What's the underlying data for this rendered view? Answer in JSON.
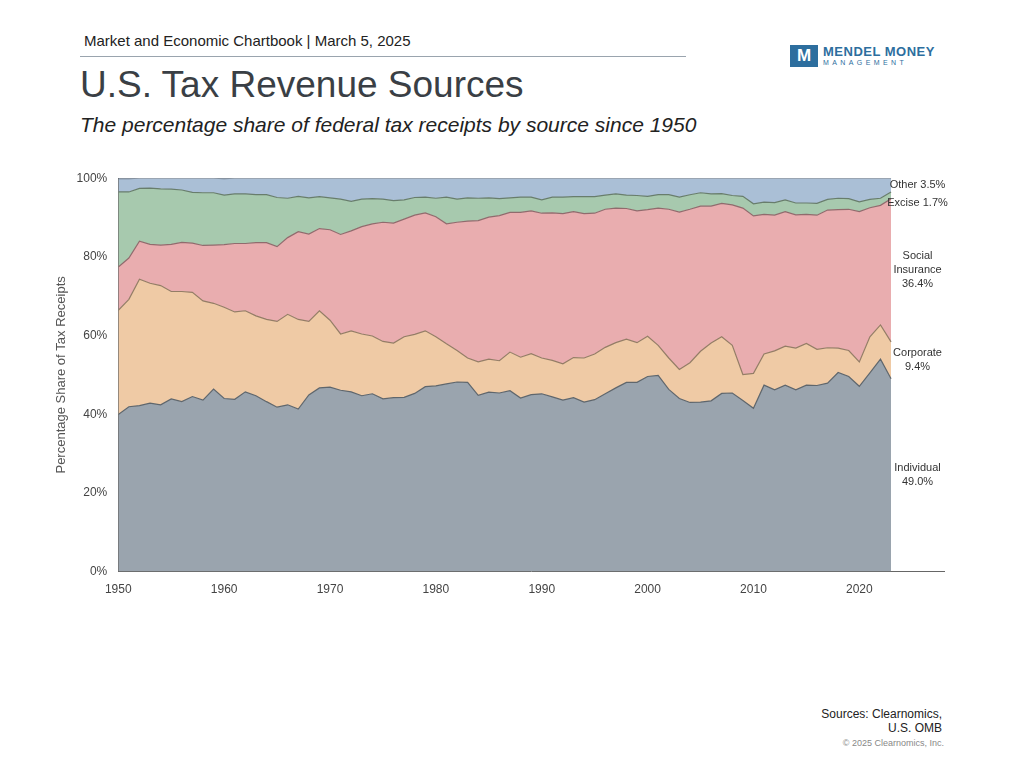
{
  "header": "Market and Economic Chartbook | March 5, 2025",
  "logo": [
    "MENDEL MONEY",
    "MANAGEMENT"
  ],
  "source": [
    "Sources: Clearnomics,",
    "U.S. OMB"
  ],
  "copyright": "© 2025 Clearnomics, Inc.",
  "chart_data": {
    "type": "area",
    "title": "U.S. Tax Revenue Sources",
    "subtitle": "The percentage share of federal tax receipts by source since 1950",
    "y_label": "Percentage Share of Tax Receipts",
    "stacked": true,
    "grid": false,
    "x": [
      1950,
      1951,
      1952,
      1953,
      1954,
      1955,
      1956,
      1957,
      1958,
      1959,
      1960,
      1961,
      1962,
      1963,
      1964,
      1965,
      1966,
      1967,
      1968,
      1969,
      1970,
      1971,
      1972,
      1973,
      1974,
      1975,
      1976,
      1977,
      1978,
      1979,
      1980,
      1981,
      1982,
      1983,
      1984,
      1985,
      1986,
      1987,
      1988,
      1989,
      1990,
      1991,
      1992,
      1993,
      1994,
      1995,
      1996,
      1997,
      1998,
      1999,
      2000,
      2001,
      2002,
      2003,
      2004,
      2005,
      2006,
      2007,
      2008,
      2009,
      2010,
      2011,
      2012,
      2013,
      2014,
      2015,
      2016,
      2017,
      2018,
      2019,
      2020,
      2021,
      2022,
      2023
    ],
    "xlim": [
      1950,
      2028
    ],
    "xticks": [
      1950,
      1960,
      1970,
      1980,
      1990,
      2000,
      2010,
      2020
    ],
    "ylim": [
      0,
      100
    ],
    "yticks": [
      {
        "value": 0,
        "label": "0%"
      },
      {
        "value": 20,
        "label": "20%"
      },
      {
        "value": 40,
        "label": "40%"
      },
      {
        "value": 60,
        "label": "60%"
      },
      {
        "value": 80,
        "label": "80%"
      },
      {
        "value": 100,
        "label": "100%"
      }
    ],
    "series": [
      {
        "name": "Individual",
        "color": "#9aa4ae",
        "values": [
          39.9,
          41.9,
          42.2,
          42.8,
          42.4,
          43.9,
          43.2,
          44.5,
          43.6,
          46.4,
          44.0,
          43.8,
          45.7,
          44.7,
          43.2,
          41.8,
          42.4,
          41.3,
          44.9,
          46.7,
          46.9,
          46.1,
          45.7,
          44.7,
          45.2,
          43.9,
          44.2,
          44.3,
          45.3,
          47.0,
          47.2,
          47.7,
          48.2,
          48.1,
          44.8,
          45.6,
          45.4,
          46.0,
          44.1,
          45.0,
          45.2,
          44.4,
          43.6,
          44.2,
          43.1,
          43.7,
          45.2,
          46.7,
          48.1,
          48.1,
          49.6,
          49.9,
          46.3,
          44.0,
          43.0,
          43.1,
          43.4,
          45.3,
          45.4,
          43.5,
          41.5,
          47.4,
          46.2,
          47.4,
          46.2,
          47.4,
          47.3,
          47.9,
          50.6,
          49.6,
          47.1,
          50.5,
          54.0,
          49.0
        ]
      },
      {
        "name": "Corporate",
        "color": "#efcaa5",
        "values": [
          26.5,
          27.3,
          32.1,
          30.5,
          30.3,
          27.3,
          28.0,
          26.5,
          25.2,
          21.8,
          23.2,
          22.2,
          20.6,
          20.3,
          20.9,
          21.8,
          23.0,
          22.8,
          18.7,
          19.6,
          17.0,
          14.3,
          15.5,
          15.7,
          14.7,
          14.6,
          13.9,
          15.4,
          15.0,
          14.2,
          12.5,
          10.2,
          8.0,
          6.2,
          8.5,
          8.4,
          8.2,
          9.8,
          10.4,
          10.4,
          9.1,
          9.3,
          9.2,
          10.2,
          11.2,
          11.6,
          11.8,
          11.5,
          11.0,
          10.1,
          10.2,
          7.6,
          8.0,
          7.4,
          10.1,
          12.9,
          14.7,
          14.4,
          12.1,
          6.6,
          8.9,
          7.9,
          9.9,
          9.9,
          10.6,
          10.6,
          9.2,
          9.0,
          6.2,
          6.6,
          6.2,
          9.2,
          8.7,
          9.4
        ]
      },
      {
        "name": "Social Insurance",
        "color": "#e9adaf",
        "values": [
          11.0,
          10.5,
          9.7,
          9.9,
          10.3,
          12.0,
          12.5,
          12.5,
          14.1,
          14.8,
          15.9,
          17.4,
          17.1,
          18.6,
          19.5,
          19.0,
          19.5,
          22.3,
          22.2,
          20.9,
          23.0,
          25.3,
          25.4,
          27.3,
          28.5,
          30.3,
          30.5,
          29.9,
          30.3,
          30.0,
          30.5,
          30.5,
          32.6,
          34.8,
          35.9,
          36.1,
          36.9,
          35.5,
          36.8,
          36.3,
          36.8,
          37.5,
          38.2,
          37.1,
          36.7,
          35.8,
          35.1,
          34.2,
          33.2,
          33.5,
          32.2,
          34.9,
          37.8,
          40.0,
          39.0,
          36.9,
          34.8,
          33.9,
          35.7,
          42.3,
          40.0,
          35.5,
          34.5,
          34.2,
          33.9,
          32.8,
          34.1,
          35.0,
          35.2,
          35.9,
          38.2,
          32.8,
          30.4,
          36.4
        ]
      },
      {
        "name": "Excise",
        "color": "#a7c9ae",
        "values": [
          19.1,
          16.8,
          13.4,
          14.3,
          14.3,
          14.0,
          13.3,
          12.9,
          13.4,
          13.3,
          12.6,
          12.6,
          12.6,
          12.2,
          12.2,
          12.5,
          10.0,
          9.0,
          9.2,
          8.1,
          8.1,
          9.0,
          7.5,
          7.0,
          6.4,
          5.9,
          5.7,
          4.9,
          4.5,
          4.0,
          4.7,
          6.8,
          5.9,
          5.9,
          5.7,
          4.9,
          4.3,
          3.7,
          3.9,
          3.5,
          3.4,
          4.0,
          4.2,
          3.8,
          4.3,
          4.2,
          3.6,
          3.6,
          3.4,
          3.9,
          3.4,
          3.4,
          3.7,
          3.8,
          3.7,
          3.4,
          3.1,
          2.5,
          2.4,
          3.0,
          3.1,
          3.1,
          3.2,
          3.0,
          3.0,
          2.9,
          3.0,
          2.7,
          2.9,
          2.7,
          2.5,
          2.1,
          1.8,
          1.7
        ]
      },
      {
        "name": "Other",
        "color": "#aabfd6",
        "values": [
          3.4,
          3.4,
          2.6,
          2.5,
          2.7,
          2.8,
          3.0,
          3.6,
          3.7,
          3.7,
          4.2,
          4.0,
          4.0,
          4.2,
          4.2,
          4.9,
          5.1,
          4.6,
          5.0,
          4.7,
          5.0,
          5.3,
          5.9,
          5.3,
          5.2,
          5.3,
          5.7,
          5.5,
          4.9,
          4.8,
          5.1,
          4.8,
          5.3,
          5.0,
          5.1,
          5.0,
          5.2,
          5.0,
          4.8,
          4.8,
          5.5,
          4.8,
          4.8,
          4.7,
          4.7,
          4.7,
          4.3,
          4.0,
          4.3,
          4.4,
          4.6,
          4.2,
          4.2,
          4.8,
          4.2,
          3.7,
          4.0,
          3.9,
          4.4,
          4.6,
          6.5,
          6.1,
          6.2,
          5.5,
          6.3,
          6.3,
          6.4,
          5.4,
          5.1,
          5.2,
          6.0,
          5.4,
          5.1,
          3.5
        ]
      }
    ],
    "annotations": [
      {
        "series": "Other",
        "text": [
          "Other 3.5%"
        ]
      },
      {
        "series": "Excise",
        "text": [
          "Excise 1.7%"
        ]
      },
      {
        "series": "Social Insurance",
        "text": [
          "Social",
          "Insurance",
          "36.4%"
        ]
      },
      {
        "series": "Corporate",
        "text": [
          "Corporate",
          "9.4%"
        ]
      },
      {
        "series": "Individual",
        "text": [
          "Individual",
          "49.0%"
        ]
      }
    ]
  }
}
